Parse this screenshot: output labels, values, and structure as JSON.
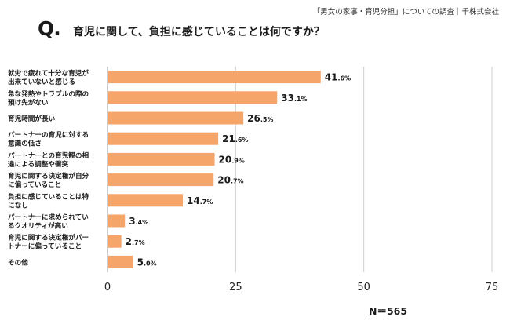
{
  "header": {
    "source": "「男女の家事・育児分担」についての調査｜千株式会社",
    "q_mark": "Q.",
    "question": "育児に関して、負担に感じていることは何ですか？"
  },
  "footer": {
    "sample_size": "N＝565"
  },
  "colors": {
    "bar": "#f5a46a",
    "grid": "#cfcfcf",
    "axis": "#999999"
  },
  "chart_data": {
    "type": "bar",
    "orientation": "horizontal",
    "categories": [
      [
        "就労で疲れて十分な育児が",
        "出来ていないと感じる"
      ],
      [
        "急な発熱やトラブルの際の",
        "預け先がない"
      ],
      [
        "育児時間が長い"
      ],
      [
        "パートナーの育児に対する",
        "意識の低さ"
      ],
      [
        "パートナーとの育児観の相",
        "違による調整や衝突"
      ],
      [
        "育児に関する決定権が自分",
        "に偏っていること"
      ],
      [
        "負担に感じていることは特",
        "になし"
      ],
      [
        "パートナーに求められてい",
        "るクオリティが高い"
      ],
      [
        "育児に関する決定権がパー",
        "トナーに偏っていること"
      ],
      [
        "その他"
      ]
    ],
    "values": [
      41.6,
      33.1,
      26.5,
      21.6,
      20.9,
      20.7,
      14.7,
      3.4,
      2.7,
      5.0
    ],
    "value_labels": [
      [
        "41",
        ".6%"
      ],
      [
        "33",
        ".1%"
      ],
      [
        "26",
        ".5%"
      ],
      [
        "21",
        ".6%"
      ],
      [
        "20",
        ".9%"
      ],
      [
        "20",
        ".7%"
      ],
      [
        "14",
        ".7%"
      ],
      [
        "3",
        ".4%"
      ],
      [
        "2",
        ".7%"
      ],
      [
        "5",
        ".0%"
      ]
    ],
    "xlim": [
      0,
      75
    ],
    "xticks": [
      "0",
      "25",
      "50",
      "75"
    ],
    "grid": true
  }
}
